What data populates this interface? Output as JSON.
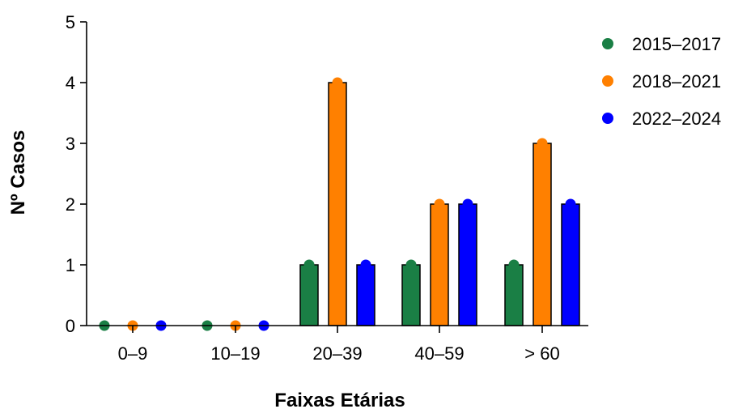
{
  "chart_data": {
    "type": "bar",
    "title": "",
    "xlabel": "Faixas Etárias",
    "ylabel": "Nº Casos",
    "categories": [
      "0–9",
      "10–19",
      "20–39",
      "40–59",
      "> 60"
    ],
    "ylim": [
      0,
      5
    ],
    "yticks": [
      "0",
      "1",
      "2",
      "3",
      "4",
      "5"
    ],
    "grid": false,
    "legend_position": "top-right",
    "series": [
      {
        "name": "2015–2017",
        "color": "#1a7f45",
        "values": [
          0,
          0,
          1,
          1,
          1
        ]
      },
      {
        "name": "2018–2021",
        "color": "#ff8000",
        "values": [
          0,
          0,
          4,
          2,
          3
        ]
      },
      {
        "name": "2022–2024",
        "color": "#0000ff",
        "values": [
          0,
          0,
          1,
          2,
          2
        ]
      }
    ]
  }
}
